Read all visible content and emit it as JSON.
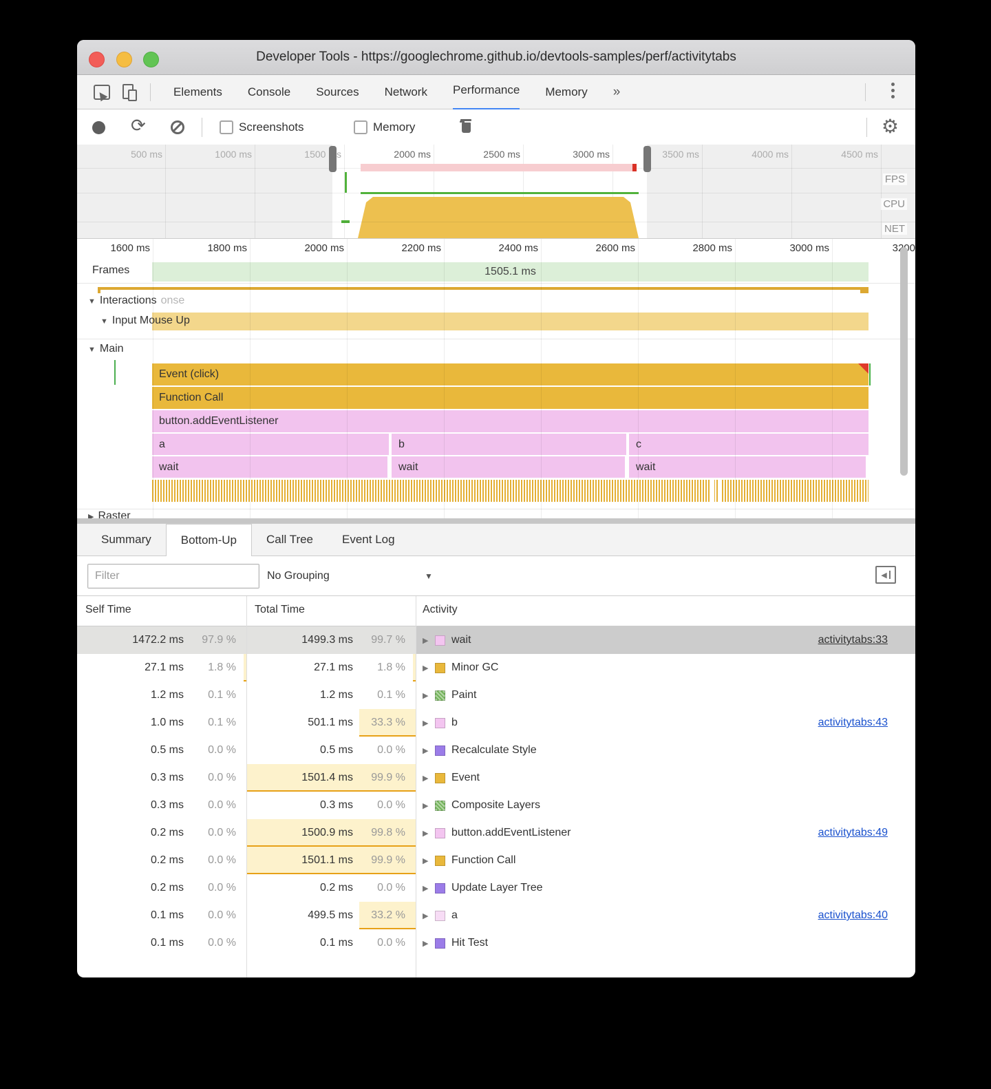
{
  "window": {
    "title": "Developer Tools - https://googlechrome.github.io/devtools-samples/perf/activitytabs"
  },
  "icons": {
    "triangle_down": "▼",
    "triangle_right": "▶",
    "overflow_chevron": "»",
    "gear": "⚙",
    "reload": "⟳",
    "dropdown_arrow": "▼",
    "toggle_triangle": "◀"
  },
  "devtools_tabs": {
    "items": [
      "Elements",
      "Console",
      "Sources",
      "Network",
      "Performance",
      "Memory"
    ],
    "active": "Performance"
  },
  "toolbar": {
    "screenshots_label": "Screenshots",
    "memory_label": "Memory"
  },
  "overview": {
    "ticks": [
      "500 ms",
      "1000 ms",
      "1500 ms",
      "2000 ms",
      "2500 ms",
      "3000 ms",
      "3500 ms",
      "4000 ms",
      "4500 ms"
    ],
    "lanes": [
      "FPS",
      "CPU",
      "NET"
    ]
  },
  "flame": {
    "ticks": [
      "1600 ms",
      "1800 ms",
      "2000 ms",
      "2200 ms",
      "2400 ms",
      "2600 ms",
      "2800 ms",
      "3000 ms",
      "3200"
    ],
    "frames_label": "Frames",
    "frames_value": "1505.1 ms",
    "interactions_label": "Interactions",
    "interactions_ghost": "onse",
    "input_label": "Input Mouse Up",
    "main_label": "Main",
    "raster_label": "Raster",
    "bars": {
      "event": "Event (click)",
      "function_call": "Function Call",
      "listener": "button.addEventListener",
      "a": "a",
      "b": "b",
      "c": "c",
      "wait1": "wait",
      "wait2": "wait",
      "wait3": "wait"
    }
  },
  "bottom": {
    "tabs": [
      "Summary",
      "Bottom-Up",
      "Call Tree",
      "Event Log"
    ],
    "active_tab": "Bottom-Up",
    "filter_placeholder": "Filter",
    "grouping": "No Grouping"
  },
  "colors": {
    "pink": "#f3c5f0",
    "pink_light": "#f7dcf5",
    "orange": "#e9b83b",
    "green": "#74b45b",
    "purple": "#9b7ce8",
    "accent_blue": "#4285f4",
    "heat_yellow": "#fdf2cc",
    "heat_border": "#e7a117"
  },
  "table": {
    "headers": [
      "Self Time",
      "Total Time",
      "Activity"
    ],
    "rows": [
      {
        "self": "1472.2 ms",
        "self_pct": "97.9 %",
        "total": "1499.3 ms",
        "total_pct": "99.7 %",
        "name": "wait",
        "link": "activitytabs:33",
        "color": "pink",
        "selected": true,
        "self_heat": 97.9,
        "total_heat": 99.7
      },
      {
        "self": "27.1 ms",
        "self_pct": "1.8 %",
        "total": "27.1 ms",
        "total_pct": "1.8 %",
        "name": "Minor GC",
        "link": "",
        "color": "orange",
        "selected": false,
        "self_heat": 1.8,
        "total_heat": 1.8
      },
      {
        "self": "1.2 ms",
        "self_pct": "0.1 %",
        "total": "1.2 ms",
        "total_pct": "0.1 %",
        "name": "Paint",
        "link": "",
        "color": "green",
        "selected": false,
        "self_heat": 0.1,
        "total_heat": 0.1
      },
      {
        "self": "1.0 ms",
        "self_pct": "0.1 %",
        "total": "501.1 ms",
        "total_pct": "33.3 %",
        "name": "b",
        "link": "activitytabs:43",
        "color": "pink",
        "selected": false,
        "self_heat": 0.1,
        "total_heat": 33.3
      },
      {
        "self": "0.5 ms",
        "self_pct": "0.0 %",
        "total": "0.5 ms",
        "total_pct": "0.0 %",
        "name": "Recalculate Style",
        "link": "",
        "color": "purple",
        "selected": false,
        "self_heat": 0,
        "total_heat": 0
      },
      {
        "self": "0.3 ms",
        "self_pct": "0.0 %",
        "total": "1501.4 ms",
        "total_pct": "99.9 %",
        "name": "Event",
        "link": "",
        "color": "orange",
        "selected": false,
        "self_heat": 0,
        "total_heat": 99.9
      },
      {
        "self": "0.3 ms",
        "self_pct": "0.0 %",
        "total": "0.3 ms",
        "total_pct": "0.0 %",
        "name": "Composite Layers",
        "link": "",
        "color": "green",
        "selected": false,
        "self_heat": 0,
        "total_heat": 0
      },
      {
        "self": "0.2 ms",
        "self_pct": "0.0 %",
        "total": "1500.9 ms",
        "total_pct": "99.8 %",
        "name": "button.addEventListener",
        "link": "activitytabs:49",
        "color": "pink",
        "selected": false,
        "self_heat": 0,
        "total_heat": 99.8
      },
      {
        "self": "0.2 ms",
        "self_pct": "0.0 %",
        "total": "1501.1 ms",
        "total_pct": "99.9 %",
        "name": "Function Call",
        "link": "",
        "color": "orange",
        "selected": false,
        "self_heat": 0,
        "total_heat": 99.9
      },
      {
        "self": "0.2 ms",
        "self_pct": "0.0 %",
        "total": "0.2 ms",
        "total_pct": "0.0 %",
        "name": "Update Layer Tree",
        "link": "",
        "color": "purple",
        "selected": false,
        "self_heat": 0,
        "total_heat": 0
      },
      {
        "self": "0.1 ms",
        "self_pct": "0.0 %",
        "total": "499.5 ms",
        "total_pct": "33.2 %",
        "name": "a",
        "link": "activitytabs:40",
        "color": "pink_light",
        "selected": false,
        "self_heat": 0,
        "total_heat": 33.2
      },
      {
        "self": "0.1 ms",
        "self_pct": "0.0 %",
        "total": "0.1 ms",
        "total_pct": "0.0 %",
        "name": "Hit Test",
        "link": "",
        "color": "purple",
        "selected": false,
        "self_heat": 0,
        "total_heat": 0
      }
    ]
  }
}
